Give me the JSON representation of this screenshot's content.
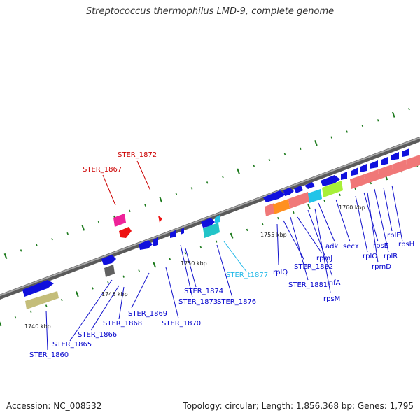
{
  "title": "Streptococcus thermophilus LMD-9, complete genome",
  "footer": {
    "accession": "Accession: NC_008532",
    "summary": "Topology: circular; Length: 1,856,368 bp; Genes: 1,795"
  },
  "colors": {
    "backbone": "#7a7a7a",
    "cds_forward": "#1010dd",
    "label_default": "#0000cc",
    "label_red": "#cc0000",
    "label_cyan": "#22b8e8",
    "tick": "#1c7a1c"
  },
  "map": {
    "kbp_ticks": [
      "1740 kbp",
      "1745 kbp",
      "1750 kbp",
      "1755 kbp",
      "1760 kbp"
    ],
    "gene_labels": [
      {
        "text": "STER_1860",
        "color": "blue"
      },
      {
        "text": "STER_1865",
        "color": "blue"
      },
      {
        "text": "STER_1866",
        "color": "blue"
      },
      {
        "text": "STER_1868",
        "color": "blue"
      },
      {
        "text": "STER_1869",
        "color": "blue"
      },
      {
        "text": "STER_1870",
        "color": "blue"
      },
      {
        "text": "STER_1874",
        "color": "blue"
      },
      {
        "text": "STER_1873",
        "color": "blue"
      },
      {
        "text": "STER_1876",
        "color": "blue"
      },
      {
        "text": "STER_t1877",
        "color": "cyan"
      },
      {
        "text": "STER_1867",
        "color": "red"
      },
      {
        "text": "STER_1872",
        "color": "red"
      },
      {
        "text": "rplQ",
        "color": "blue"
      },
      {
        "text": "STER_1882",
        "color": "blue"
      },
      {
        "text": "STER_1881",
        "color": "blue"
      },
      {
        "text": "rpmJ",
        "color": "blue"
      },
      {
        "text": "infA",
        "color": "blue"
      },
      {
        "text": "rpsM",
        "color": "blue"
      },
      {
        "text": "adk",
        "color": "blue"
      },
      {
        "text": "secY",
        "color": "blue"
      },
      {
        "text": "rplO",
        "color": "blue"
      },
      {
        "text": "rpsE",
        "color": "blue"
      },
      {
        "text": "rpmD",
        "color": "blue"
      },
      {
        "text": "rplR",
        "color": "blue"
      },
      {
        "text": "rplF",
        "color": "blue"
      },
      {
        "text": "rpsH",
        "color": "blue"
      }
    ]
  }
}
